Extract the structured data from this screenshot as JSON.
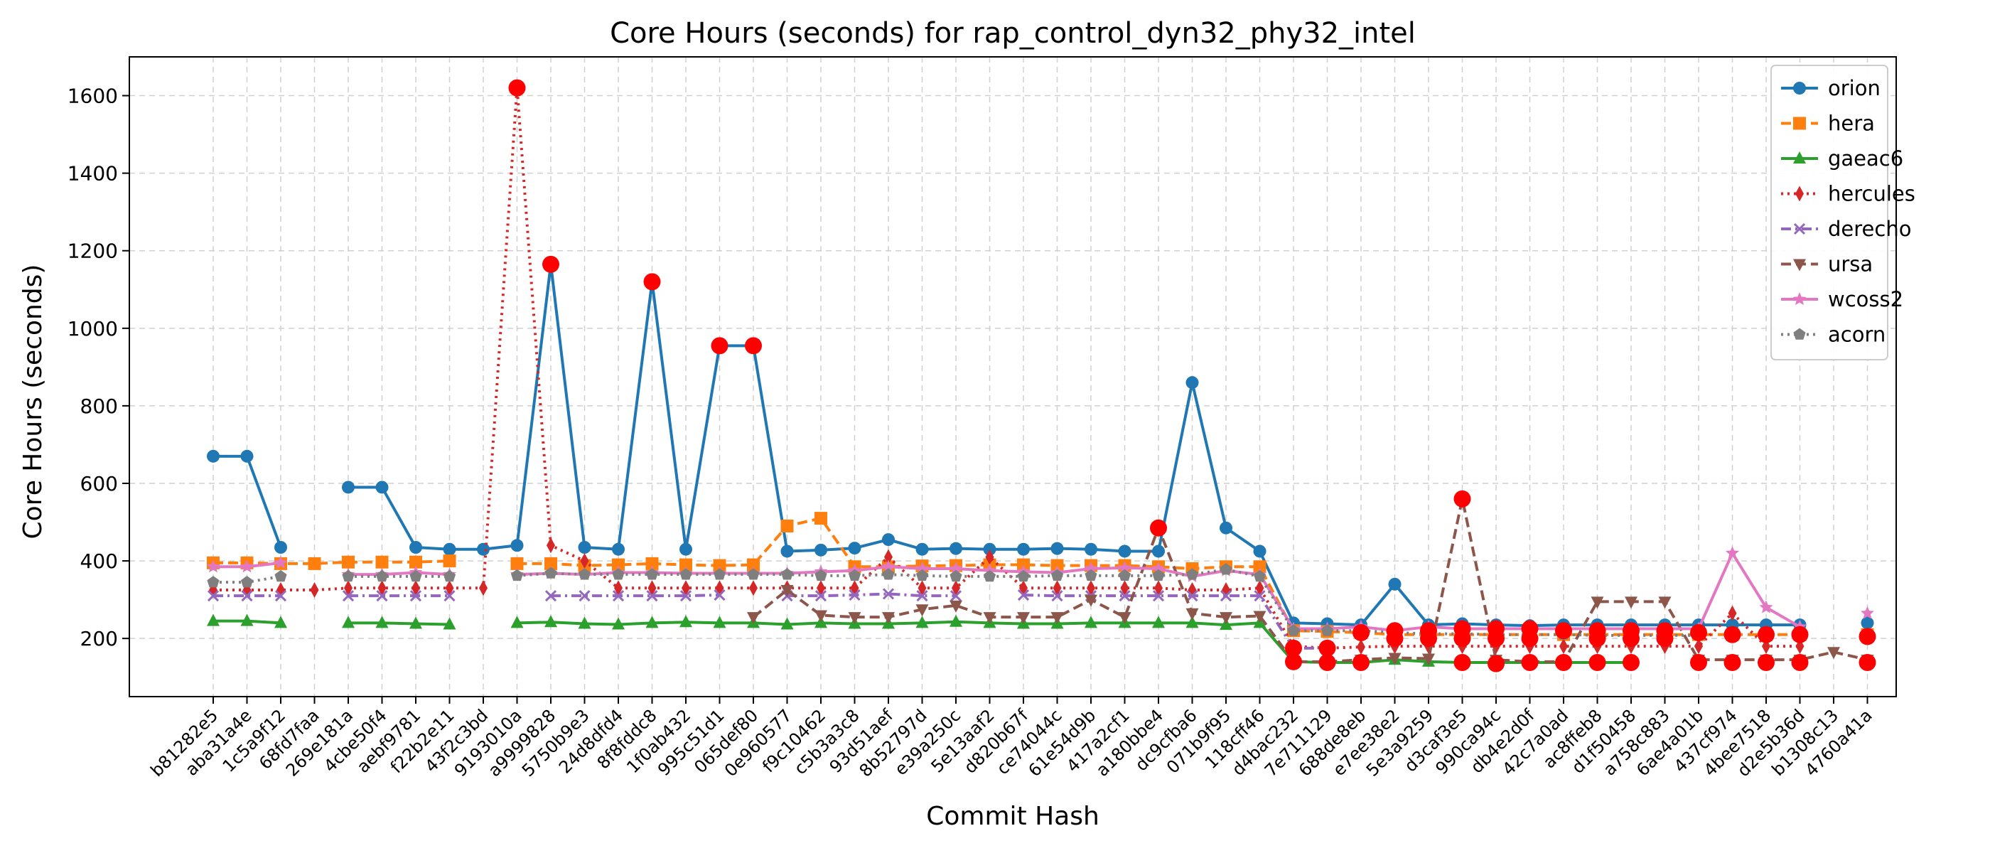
{
  "chart_data": {
    "type": "line",
    "title": "Core Hours (seconds) for rap_control_dyn32_phy32_intel",
    "xlabel": "Commit Hash",
    "ylabel": "Core Hours (seconds)",
    "ylim": [
      50,
      1700
    ],
    "yticks": [
      200,
      400,
      600,
      800,
      1000,
      1200,
      1400,
      1600
    ],
    "grid": true,
    "legend_position": "top-right",
    "categories": [
      "b81282e5",
      "aba31a4e",
      "1c5a9f12",
      "68fd7faa",
      "269e181a",
      "4cbe50f4",
      "aebf9781",
      "f22b2e11",
      "43f2c3bd",
      "9193010a",
      "a9999828",
      "5750b9e3",
      "24d8dfd4",
      "8f8fddc8",
      "1f0ab432",
      "995c51d1",
      "065def80",
      "0e960577",
      "f9c10462",
      "c5b3a3c8",
      "93d51aef",
      "8b52797d",
      "e39a250c",
      "5e13aaf2",
      "d820b67f",
      "ce74044c",
      "61e54d9b",
      "417a2cf1",
      "a180bbe4",
      "dc9cfba6",
      "071b9f95",
      "118cff46",
      "d4bac232",
      "7e711129",
      "688de8eb",
      "e7ee38e2",
      "5e3a9259",
      "d3caf3e5",
      "990ca94c",
      "db4e2d0f",
      "42c7a0ad",
      "ac8ffeb8",
      "d1f50458",
      "a758c883",
      "6ae4a01b",
      "437cf974",
      "4bee7518",
      "d2e5b36d",
      "b1308c13",
      "4760a41a"
    ],
    "series": [
      {
        "name": "orion",
        "color": "#1f77b4",
        "marker": "circle",
        "dash": "solid",
        "values": [
          670,
          670,
          435,
          null,
          590,
          590,
          435,
          430,
          430,
          440,
          1165,
          435,
          430,
          1120,
          430,
          955,
          955,
          425,
          428,
          433,
          455,
          430,
          432,
          430,
          430,
          432,
          430,
          425,
          425,
          860,
          485,
          425,
          240,
          238,
          235,
          340,
          235,
          238,
          235,
          233,
          235,
          235,
          235,
          235,
          235,
          235,
          235,
          235,
          null,
          240
        ]
      },
      {
        "name": "hera",
        "color": "#ff7f0e",
        "marker": "square",
        "dash": "dashed",
        "values": [
          395,
          395,
          393,
          393,
          397,
          397,
          397,
          400,
          null,
          393,
          393,
          388,
          390,
          393,
          390,
          388,
          390,
          490,
          510,
          385,
          385,
          387,
          388,
          390,
          390,
          388,
          388,
          388,
          385,
          380,
          385,
          385,
          220,
          218,
          215,
          210,
          210,
          210,
          210,
          210,
          210,
          210,
          210,
          210,
          210,
          210,
          210,
          210,
          null,
          210
        ]
      },
      {
        "name": "gaeac6",
        "color": "#2ca02c",
        "marker": "triangle-up",
        "dash": "solid",
        "values": [
          245,
          245,
          240,
          null,
          240,
          240,
          238,
          236,
          null,
          240,
          242,
          238,
          236,
          240,
          242,
          240,
          240,
          236,
          240,
          238,
          238,
          240,
          243,
          240,
          238,
          238,
          240,
          240,
          240,
          240,
          235,
          240,
          140,
          138,
          138,
          145,
          140,
          138,
          138,
          138,
          138,
          138,
          138,
          null,
          null,
          null,
          null,
          null,
          null,
          null
        ]
      },
      {
        "name": "hercules",
        "color": "#d62728",
        "marker": "diamond",
        "dash": "dotted",
        "values": [
          325,
          325,
          325,
          325,
          330,
          330,
          330,
          330,
          330,
          1620,
          440,
          400,
          330,
          330,
          330,
          330,
          330,
          330,
          330,
          330,
          410,
          330,
          330,
          410,
          330,
          330,
          330,
          330,
          330,
          325,
          325,
          330,
          180,
          175,
          178,
          180,
          180,
          180,
          180,
          180,
          180,
          180,
          180,
          180,
          180,
          265,
          180,
          180,
          null,
          205
        ]
      },
      {
        "name": "derecho",
        "color": "#9467bd",
        "marker": "x",
        "dash": "dashdot",
        "values": [
          310,
          310,
          310,
          null,
          310,
          310,
          310,
          310,
          null,
          null,
          310,
          310,
          310,
          310,
          310,
          312,
          null,
          310,
          310,
          312,
          315,
          310,
          310,
          null,
          312,
          310,
          310,
          310,
          310,
          310,
          310,
          310,
          175,
          175,
          null,
          null,
          null,
          null,
          null,
          null,
          null,
          null,
          null,
          null,
          null,
          null,
          null,
          null,
          null,
          null
        ]
      },
      {
        "name": "ursa",
        "color": "#8c564b",
        "marker": "triangle-down",
        "dash": "dashed",
        "values": [
          null,
          null,
          null,
          null,
          null,
          null,
          null,
          null,
          null,
          null,
          null,
          null,
          null,
          null,
          null,
          null,
          255,
          325,
          260,
          255,
          255,
          275,
          285,
          255,
          255,
          255,
          300,
          255,
          485,
          265,
          255,
          258,
          140,
          140,
          145,
          150,
          148,
          560,
          145,
          140,
          140,
          295,
          295,
          295,
          145,
          145,
          145,
          145,
          165,
          145
        ]
      },
      {
        "name": "wcoss2",
        "color": "#e377c2",
        "marker": "star",
        "dash": "solid",
        "values": [
          385,
          385,
          395,
          null,
          365,
          365,
          370,
          365,
          null,
          365,
          368,
          365,
          370,
          370,
          368,
          368,
          368,
          368,
          372,
          375,
          385,
          380,
          380,
          375,
          372,
          370,
          380,
          382,
          380,
          360,
          375,
          365,
          225,
          225,
          230,
          220,
          230,
          225,
          225,
          225,
          225,
          225,
          225,
          225,
          225,
          420,
          280,
          230,
          null,
          265
        ]
      },
      {
        "name": "acorn",
        "color": "#7f7f7f",
        "marker": "pentagon",
        "dash": "dotted",
        "values": [
          345,
          345,
          360,
          null,
          360,
          360,
          360,
          360,
          null,
          362,
          368,
          365,
          365,
          365,
          365,
          365,
          365,
          365,
          362,
          362,
          365,
          362,
          360,
          360,
          360,
          362,
          362,
          362,
          362,
          365,
          378,
          360,
          220,
          220,
          220,
          215,
          212,
          212,
          210,
          210,
          210,
          208,
          208,
          208,
          208,
          null,
          null,
          null,
          null,
          null
        ]
      }
    ],
    "highlight_points": [
      {
        "category": "9193010a",
        "y": 1620
      },
      {
        "category": "a9999828",
        "y": 1165
      },
      {
        "category": "8f8fddc8",
        "y": 1120
      },
      {
        "category": "995c51d1",
        "y": 955
      },
      {
        "category": "065def80",
        "y": 955
      },
      {
        "category": "a180bbe4",
        "y": 485
      },
      {
        "category": "d3caf3e5",
        "y": 560
      },
      {
        "category": "d4bac232",
        "y": 175
      },
      {
        "category": "d4bac232",
        "y": 140
      },
      {
        "category": "7e711129",
        "y": 175
      },
      {
        "category": "7e711129",
        "y": 138
      },
      {
        "category": "688de8eb",
        "y": 215
      },
      {
        "category": "688de8eb",
        "y": 138
      },
      {
        "category": "e7ee38e2",
        "y": 220
      },
      {
        "category": "e7ee38e2",
        "y": 200
      },
      {
        "category": "5e3a9259",
        "y": 220
      },
      {
        "category": "5e3a9259",
        "y": 200
      },
      {
        "category": "d3caf3e5",
        "y": 225
      },
      {
        "category": "d3caf3e5",
        "y": 200
      },
      {
        "category": "d3caf3e5",
        "y": 138
      },
      {
        "category": "990ca94c",
        "y": 225
      },
      {
        "category": "990ca94c",
        "y": 200
      },
      {
        "category": "990ca94c",
        "y": 135
      },
      {
        "category": "db4e2d0f",
        "y": 225
      },
      {
        "category": "db4e2d0f",
        "y": 200
      },
      {
        "category": "db4e2d0f",
        "y": 138
      },
      {
        "category": "42c7a0ad",
        "y": 220
      },
      {
        "category": "42c7a0ad",
        "y": 138
      },
      {
        "category": "ac8ffeb8",
        "y": 220
      },
      {
        "category": "ac8ffeb8",
        "y": 200
      },
      {
        "category": "ac8ffeb8",
        "y": 138
      },
      {
        "category": "d1f50458",
        "y": 220
      },
      {
        "category": "d1f50458",
        "y": 200
      },
      {
        "category": "d1f50458",
        "y": 138
      },
      {
        "category": "a758c883",
        "y": 220
      },
      {
        "category": "a758c883",
        "y": 200
      },
      {
        "category": "6ae4a01b",
        "y": 215
      },
      {
        "category": "6ae4a01b",
        "y": 138
      },
      {
        "category": "437cf974",
        "y": 210
      },
      {
        "category": "437cf974",
        "y": 138
      },
      {
        "category": "4bee7518",
        "y": 210
      },
      {
        "category": "4bee7518",
        "y": 138
      },
      {
        "category": "d2e5b36d",
        "y": 210
      },
      {
        "category": "d2e5b36d",
        "y": 138
      },
      {
        "category": "4760a41a",
        "y": 205
      },
      {
        "category": "4760a41a",
        "y": 138
      }
    ],
    "highlight_color": "#ff0000"
  }
}
